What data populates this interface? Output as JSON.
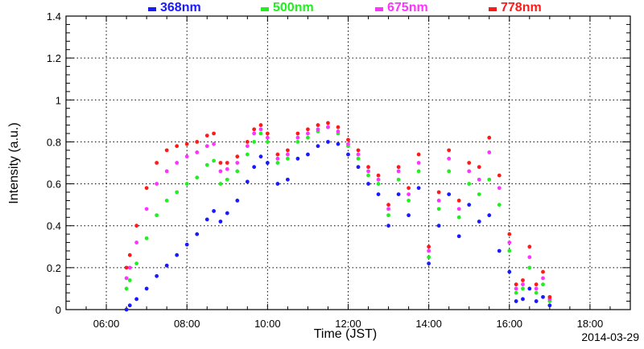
{
  "chart_data": {
    "type": "scatter",
    "title": "",
    "xlabel": "Time (JST)",
    "ylabel": "Intensity (a.u.)",
    "date_label": "2014-03-29",
    "xlim": [
      "05:00",
      "19:00"
    ],
    "ylim": [
      0,
      1.4
    ],
    "x_ticks": [
      "06:00",
      "08:00",
      "10:00",
      "12:00",
      "14:00",
      "16:00",
      "18:00"
    ],
    "y_ticks": [
      "0",
      "0.2",
      "0.4",
      "0.6",
      "0.8",
      "1",
      "1.2",
      "1.4"
    ],
    "grid": true,
    "legend_position": "top",
    "series": [
      {
        "name": "368nm",
        "color": "#1a1aff",
        "points": [
          [
            "06:30",
            0.0
          ],
          [
            "06:35",
            0.02
          ],
          [
            "06:45",
            0.05
          ],
          [
            "07:00",
            0.1
          ],
          [
            "07:15",
            0.16
          ],
          [
            "07:30",
            0.21
          ],
          [
            "07:45",
            0.26
          ],
          [
            "08:00",
            0.31
          ],
          [
            "08:15",
            0.36
          ],
          [
            "08:30",
            0.43
          ],
          [
            "08:40",
            0.47
          ],
          [
            "08:50",
            0.42
          ],
          [
            "09:00",
            0.46
          ],
          [
            "09:15",
            0.52
          ],
          [
            "09:30",
            0.61
          ],
          [
            "09:40",
            0.68
          ],
          [
            "09:50",
            0.73
          ],
          [
            "10:00",
            0.7
          ],
          [
            "10:15",
            0.6
          ],
          [
            "10:30",
            0.62
          ],
          [
            "10:45",
            0.72
          ],
          [
            "11:00",
            0.74
          ],
          [
            "11:15",
            0.78
          ],
          [
            "11:30",
            0.8
          ],
          [
            "11:45",
            0.79
          ],
          [
            "12:00",
            0.74
          ],
          [
            "12:15",
            0.68
          ],
          [
            "12:30",
            0.6
          ],
          [
            "12:45",
            0.55
          ],
          [
            "13:00",
            0.4
          ],
          [
            "13:15",
            0.55
          ],
          [
            "13:30",
            0.45
          ],
          [
            "13:45",
            0.58
          ],
          [
            "14:00",
            0.22
          ],
          [
            "14:15",
            0.4
          ],
          [
            "14:30",
            0.55
          ],
          [
            "14:45",
            0.35
          ],
          [
            "15:00",
            0.5
          ],
          [
            "15:15",
            0.42
          ],
          [
            "15:30",
            0.45
          ],
          [
            "15:45",
            0.28
          ],
          [
            "16:00",
            0.18
          ],
          [
            "16:10",
            0.04
          ],
          [
            "16:20",
            0.05
          ],
          [
            "16:30",
            0.1
          ],
          [
            "16:40",
            0.04
          ],
          [
            "16:50",
            0.06
          ],
          [
            "17:00",
            0.02
          ]
        ]
      },
      {
        "name": "500nm",
        "color": "#22ee22",
        "points": [
          [
            "06:30",
            0.1
          ],
          [
            "06:35",
            0.14
          ],
          [
            "06:45",
            0.22
          ],
          [
            "07:00",
            0.34
          ],
          [
            "07:15",
            0.45
          ],
          [
            "07:30",
            0.52
          ],
          [
            "07:45",
            0.56
          ],
          [
            "08:00",
            0.6
          ],
          [
            "08:15",
            0.63
          ],
          [
            "08:30",
            0.69
          ],
          [
            "08:40",
            0.71
          ],
          [
            "08:50",
            0.6
          ],
          [
            "09:00",
            0.62
          ],
          [
            "09:15",
            0.66
          ],
          [
            "09:30",
            0.74
          ],
          [
            "09:40",
            0.8
          ],
          [
            "09:50",
            0.84
          ],
          [
            "10:00",
            0.8
          ],
          [
            "10:15",
            0.7
          ],
          [
            "10:30",
            0.72
          ],
          [
            "10:45",
            0.8
          ],
          [
            "11:00",
            0.82
          ],
          [
            "11:15",
            0.85
          ],
          [
            "11:30",
            0.87
          ],
          [
            "11:45",
            0.84
          ],
          [
            "12:00",
            0.78
          ],
          [
            "12:15",
            0.72
          ],
          [
            "12:30",
            0.64
          ],
          [
            "12:45",
            0.6
          ],
          [
            "13:00",
            0.45
          ],
          [
            "13:15",
            0.62
          ],
          [
            "13:30",
            0.52
          ],
          [
            "13:45",
            0.66
          ],
          [
            "14:00",
            0.25
          ],
          [
            "14:15",
            0.48
          ],
          [
            "14:30",
            0.66
          ],
          [
            "14:45",
            0.44
          ],
          [
            "15:00",
            0.6
          ],
          [
            "15:15",
            0.55
          ],
          [
            "15:30",
            0.62
          ],
          [
            "15:45",
            0.5
          ],
          [
            "16:00",
            0.28
          ],
          [
            "16:10",
            0.08
          ],
          [
            "16:20",
            0.1
          ],
          [
            "16:30",
            0.2
          ],
          [
            "16:40",
            0.08
          ],
          [
            "16:50",
            0.12
          ],
          [
            "17:00",
            0.04
          ]
        ]
      },
      {
        "name": "675nm",
        "color": "#ff33ff",
        "points": [
          [
            "06:30",
            0.15
          ],
          [
            "06:35",
            0.2
          ],
          [
            "06:45",
            0.32
          ],
          [
            "07:00",
            0.48
          ],
          [
            "07:15",
            0.6
          ],
          [
            "07:30",
            0.66
          ],
          [
            "07:45",
            0.7
          ],
          [
            "08:00",
            0.73
          ],
          [
            "08:15",
            0.75
          ],
          [
            "08:30",
            0.78
          ],
          [
            "08:40",
            0.79
          ],
          [
            "08:50",
            0.66
          ],
          [
            "09:00",
            0.67
          ],
          [
            "09:15",
            0.7
          ],
          [
            "09:30",
            0.78
          ],
          [
            "09:40",
            0.84
          ],
          [
            "09:50",
            0.86
          ],
          [
            "10:00",
            0.82
          ],
          [
            "10:15",
            0.72
          ],
          [
            "10:30",
            0.74
          ],
          [
            "10:45",
            0.82
          ],
          [
            "11:00",
            0.84
          ],
          [
            "11:15",
            0.86
          ],
          [
            "11:30",
            0.87
          ],
          [
            "11:45",
            0.85
          ],
          [
            "12:00",
            0.79
          ],
          [
            "12:15",
            0.74
          ],
          [
            "12:30",
            0.66
          ],
          [
            "12:45",
            0.62
          ],
          [
            "13:00",
            0.48
          ],
          [
            "13:15",
            0.66
          ],
          [
            "13:30",
            0.55
          ],
          [
            "13:45",
            0.7
          ],
          [
            "14:00",
            0.28
          ],
          [
            "14:15",
            0.52
          ],
          [
            "14:30",
            0.72
          ],
          [
            "14:45",
            0.48
          ],
          [
            "15:00",
            0.66
          ],
          [
            "15:15",
            0.62
          ],
          [
            "15:30",
            0.75
          ],
          [
            "15:45",
            0.58
          ],
          [
            "16:00",
            0.32
          ],
          [
            "16:10",
            0.1
          ],
          [
            "16:20",
            0.12
          ],
          [
            "16:30",
            0.25
          ],
          [
            "16:40",
            0.1
          ],
          [
            "16:50",
            0.15
          ],
          [
            "17:00",
            0.05
          ]
        ]
      },
      {
        "name": "778nm",
        "color": "#ff1a1a",
        "points": [
          [
            "06:30",
            0.2
          ],
          [
            "06:35",
            0.26
          ],
          [
            "06:45",
            0.4
          ],
          [
            "07:00",
            0.58
          ],
          [
            "07:15",
            0.7
          ],
          [
            "07:30",
            0.76
          ],
          [
            "07:45",
            0.78
          ],
          [
            "08:00",
            0.79
          ],
          [
            "08:15",
            0.8
          ],
          [
            "08:30",
            0.83
          ],
          [
            "08:40",
            0.84
          ],
          [
            "08:50",
            0.7
          ],
          [
            "09:00",
            0.7
          ],
          [
            "09:15",
            0.73
          ],
          [
            "09:30",
            0.8
          ],
          [
            "09:40",
            0.86
          ],
          [
            "09:50",
            0.88
          ],
          [
            "10:00",
            0.84
          ],
          [
            "10:15",
            0.74
          ],
          [
            "10:30",
            0.76
          ],
          [
            "10:45",
            0.84
          ],
          [
            "11:00",
            0.86
          ],
          [
            "11:15",
            0.88
          ],
          [
            "11:30",
            0.89
          ],
          [
            "11:45",
            0.87
          ],
          [
            "12:00",
            0.81
          ],
          [
            "12:15",
            0.76
          ],
          [
            "12:30",
            0.68
          ],
          [
            "12:45",
            0.64
          ],
          [
            "13:00",
            0.5
          ],
          [
            "13:15",
            0.68
          ],
          [
            "13:30",
            0.58
          ],
          [
            "13:45",
            0.74
          ],
          [
            "14:00",
            0.3
          ],
          [
            "14:15",
            0.56
          ],
          [
            "14:30",
            0.76
          ],
          [
            "14:45",
            0.52
          ],
          [
            "15:00",
            0.7
          ],
          [
            "15:15",
            0.68
          ],
          [
            "15:30",
            0.82
          ],
          [
            "15:45",
            0.64
          ],
          [
            "16:00",
            0.36
          ],
          [
            "16:10",
            0.12
          ],
          [
            "16:20",
            0.14
          ],
          [
            "16:30",
            0.3
          ],
          [
            "16:40",
            0.12
          ],
          [
            "16:50",
            0.18
          ],
          [
            "17:00",
            0.06
          ]
        ]
      }
    ]
  }
}
